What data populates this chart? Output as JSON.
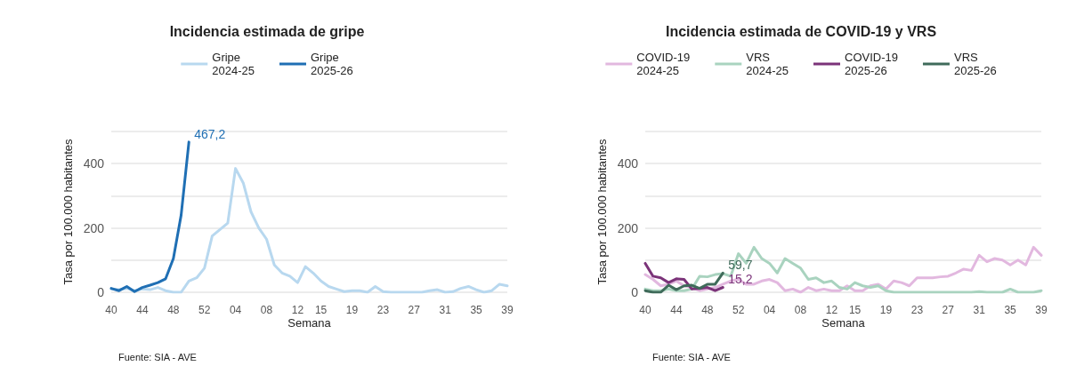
{
  "chart_data": [
    {
      "type": "line",
      "title": "Incidencia estimada de gripe",
      "xlabel": "Semana",
      "ylabel": "Tasa por 100.000 habitantes",
      "categories": [
        "40",
        null,
        null,
        null,
        "44",
        null,
        null,
        null,
        "48",
        null,
        null,
        null,
        "52",
        null,
        null,
        null,
        "04",
        null,
        null,
        null,
        "08",
        null,
        null,
        null,
        "12",
        null,
        null,
        "15",
        null,
        null,
        null,
        "19",
        null,
        null,
        null,
        "23",
        null,
        null,
        null,
        "27",
        null,
        null,
        null,
        "31",
        null,
        null,
        null,
        "35",
        null,
        null,
        null,
        "39"
      ],
      "ylim": [
        0,
        500
      ],
      "yticks": [
        0,
        {
          "value": 100,
          "label": null
        },
        200,
        {
          "value": 300,
          "label": null
        },
        400,
        {
          "value": 500,
          "label": null
        }
      ],
      "grid": "y",
      "legend": "top",
      "marker": "none",
      "line_style": "solid",
      "annotations": [
        "Fuente: SIA - AVE"
      ],
      "series": [
        {
          "name": "Gripe\n2024-25",
          "color": "#b8d8ef",
          "values": [
            10,
            8,
            12,
            5,
            10,
            8,
            15,
            5,
            0,
            0,
            35,
            45,
            75,
            175,
            195,
            215,
            385,
            340,
            250,
            200,
            165,
            85,
            60,
            50,
            30,
            80,
            60,
            35,
            18,
            10,
            2,
            5,
            5,
            0,
            18,
            2,
            0,
            0,
            0,
            0,
            0,
            5,
            8,
            0,
            2,
            12,
            18,
            8,
            0,
            5,
            25,
            20
          ]
        },
        {
          "name": "Gripe\n2025-26",
          "color": "#1f6fb4",
          "values": [
            12,
            5,
            18,
            2,
            15,
            22,
            30,
            42,
            105,
            240,
            467.2,
            null,
            null,
            null,
            null,
            null,
            null,
            null,
            null,
            null,
            null,
            null,
            null,
            null,
            null,
            null,
            null,
            null,
            null,
            null,
            null,
            null,
            null,
            null,
            null,
            null,
            null,
            null,
            null,
            null,
            null,
            null,
            null,
            null,
            null,
            null,
            null,
            null,
            null,
            null,
            null,
            null
          ],
          "value_labels": [
            null,
            null,
            null,
            null,
            null,
            null,
            null,
            null,
            null,
            null,
            "467,2",
            null,
            null,
            null,
            null,
            null,
            null,
            null,
            null,
            null,
            null,
            null,
            null,
            null,
            null,
            null,
            null,
            null,
            null,
            null,
            null,
            null,
            null,
            null,
            null,
            null,
            null,
            null,
            null,
            null,
            null,
            null,
            null,
            null,
            null,
            null,
            null,
            null,
            null,
            null,
            null,
            null
          ]
        }
      ]
    },
    {
      "type": "line",
      "title": "Incidencia estimada de COVID-19 y VRS",
      "xlabel": "Semana",
      "ylabel": "Tasa por 100.000 habitantes",
      "categories": [
        "40",
        null,
        null,
        null,
        "44",
        null,
        null,
        null,
        "48",
        null,
        null,
        null,
        "52",
        null,
        null,
        null,
        "04",
        null,
        null,
        null,
        "08",
        null,
        null,
        null,
        "12",
        null,
        null,
        "15",
        null,
        null,
        null,
        "19",
        null,
        null,
        null,
        "23",
        null,
        null,
        null,
        "27",
        null,
        null,
        null,
        "31",
        null,
        null,
        null,
        "35",
        null,
        null,
        null,
        "39"
      ],
      "ylim": [
        0,
        500
      ],
      "yticks": [
        0,
        {
          "value": 100,
          "label": null
        },
        200,
        {
          "value": 300,
          "label": null
        },
        400,
        {
          "value": 500,
          "label": null
        }
      ],
      "grid": "y",
      "legend": "top",
      "marker": "none",
      "line_style": "solid",
      "annotations": [
        "Fuente: SIA - AVE"
      ],
      "series": [
        {
          "name": "COVID-19\n2024-25",
          "color": "#e2b8df",
          "values": [
            55,
            40,
            20,
            25,
            35,
            20,
            15,
            5,
            10,
            15,
            25,
            35,
            40,
            25,
            25,
            35,
            40,
            30,
            5,
            10,
            0,
            15,
            5,
            10,
            5,
            5,
            20,
            5,
            5,
            20,
            25,
            10,
            35,
            30,
            20,
            45,
            45,
            45,
            48,
            50,
            60,
            72,
            68,
            115,
            95,
            105,
            100,
            85,
            100,
            85,
            140,
            115
          ]
        },
        {
          "name": "VRS\n2024-25",
          "color": "#a9d3bf",
          "values": [
            10,
            5,
            5,
            10,
            5,
            5,
            10,
            50,
            48,
            55,
            58,
            50,
            120,
            90,
            140,
            105,
            90,
            60,
            105,
            90,
            75,
            40,
            45,
            30,
            35,
            15,
            10,
            30,
            20,
            15,
            20,
            5,
            0,
            0,
            0,
            0,
            0,
            0,
            0,
            0,
            0,
            0,
            0,
            2,
            0,
            0,
            0,
            10,
            0,
            0,
            0,
            5
          ]
        },
        {
          "name": "COVID-19\n2025-26",
          "color": "#7b3379",
          "values": [
            90,
            50,
            45,
            30,
            42,
            40,
            10,
            12,
            15,
            5,
            15.2,
            null,
            null,
            null,
            null,
            null,
            null,
            null,
            null,
            null,
            null,
            null,
            null,
            null,
            null,
            null,
            null,
            null,
            null,
            null,
            null,
            null,
            null,
            null,
            null,
            null,
            null,
            null,
            null,
            null,
            null,
            null,
            null,
            null,
            null,
            null,
            null,
            null,
            null,
            null,
            null,
            null
          ],
          "value_labels": [
            null,
            null,
            null,
            null,
            null,
            null,
            null,
            null,
            null,
            null,
            "15,2",
            null,
            null,
            null,
            null,
            null,
            null,
            null,
            null,
            null,
            null,
            null,
            null,
            null,
            null,
            null,
            null,
            null,
            null,
            null,
            null,
            null,
            null,
            null,
            null,
            null,
            null,
            null,
            null,
            null,
            null,
            null,
            null,
            null,
            null,
            null,
            null,
            null,
            null,
            null,
            null,
            null
          ]
        },
        {
          "name": "VRS\n2025-26",
          "color": "#3f6b5a",
          "values": [
            5,
            0,
            0,
            22,
            8,
            20,
            22,
            12,
            25,
            25,
            59.7,
            null,
            null,
            null,
            null,
            null,
            null,
            null,
            null,
            null,
            null,
            null,
            null,
            null,
            null,
            null,
            null,
            null,
            null,
            null,
            null,
            null,
            null,
            null,
            null,
            null,
            null,
            null,
            null,
            null,
            null,
            null,
            null,
            null,
            null,
            null,
            null,
            null,
            null,
            null,
            null,
            null
          ],
          "value_labels": [
            null,
            null,
            null,
            null,
            null,
            null,
            null,
            null,
            null,
            null,
            "59,7",
            null,
            null,
            null,
            null,
            null,
            null,
            null,
            null,
            null,
            null,
            null,
            null,
            null,
            null,
            null,
            null,
            null,
            null,
            null,
            null,
            null,
            null,
            null,
            null,
            null,
            null,
            null,
            null,
            null,
            null,
            null,
            null,
            null,
            null,
            null,
            null,
            null,
            null,
            null,
            null,
            null
          ]
        }
      ]
    }
  ]
}
